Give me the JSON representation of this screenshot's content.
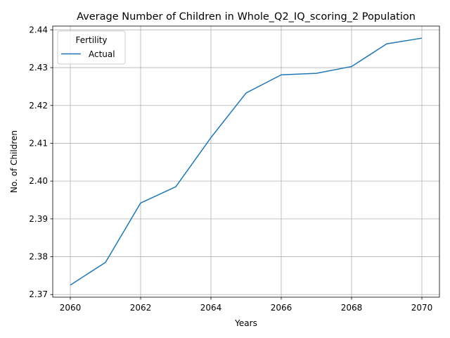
{
  "chart_data": {
    "type": "line",
    "title": "Average Number of Children in Whole_Q2_IQ_scoring_2 Population",
    "xlabel": "Years",
    "ylabel": "No. of Children",
    "x": [
      2060,
      2061,
      2062,
      2063,
      2064,
      2065,
      2066,
      2067,
      2068,
      2069,
      2070
    ],
    "series": [
      {
        "name": "Actual",
        "color": "#1f77b4",
        "values": [
          2.3725,
          2.3785,
          2.3942,
          2.3985,
          2.4115,
          2.4233,
          2.4281,
          2.4285,
          2.4303,
          2.4363,
          2.4378
        ]
      }
    ],
    "xlim": [
      2059.5,
      2070.5
    ],
    "ylim": [
      2.3693,
      2.441
    ],
    "xticks": [
      2060,
      2062,
      2064,
      2066,
      2068,
      2070
    ],
    "xtick_labels": [
      "2060",
      "2062",
      "2064",
      "2066",
      "2068",
      "2070"
    ],
    "yticks": [
      2.37,
      2.38,
      2.39,
      2.4,
      2.41,
      2.42,
      2.43,
      2.44
    ],
    "ytick_labels": [
      "2.37",
      "2.38",
      "2.39",
      "2.40",
      "2.41",
      "2.42",
      "2.43",
      "2.44"
    ],
    "grid": true,
    "legend": {
      "title": "Fertility",
      "placement": "top-left"
    }
  }
}
